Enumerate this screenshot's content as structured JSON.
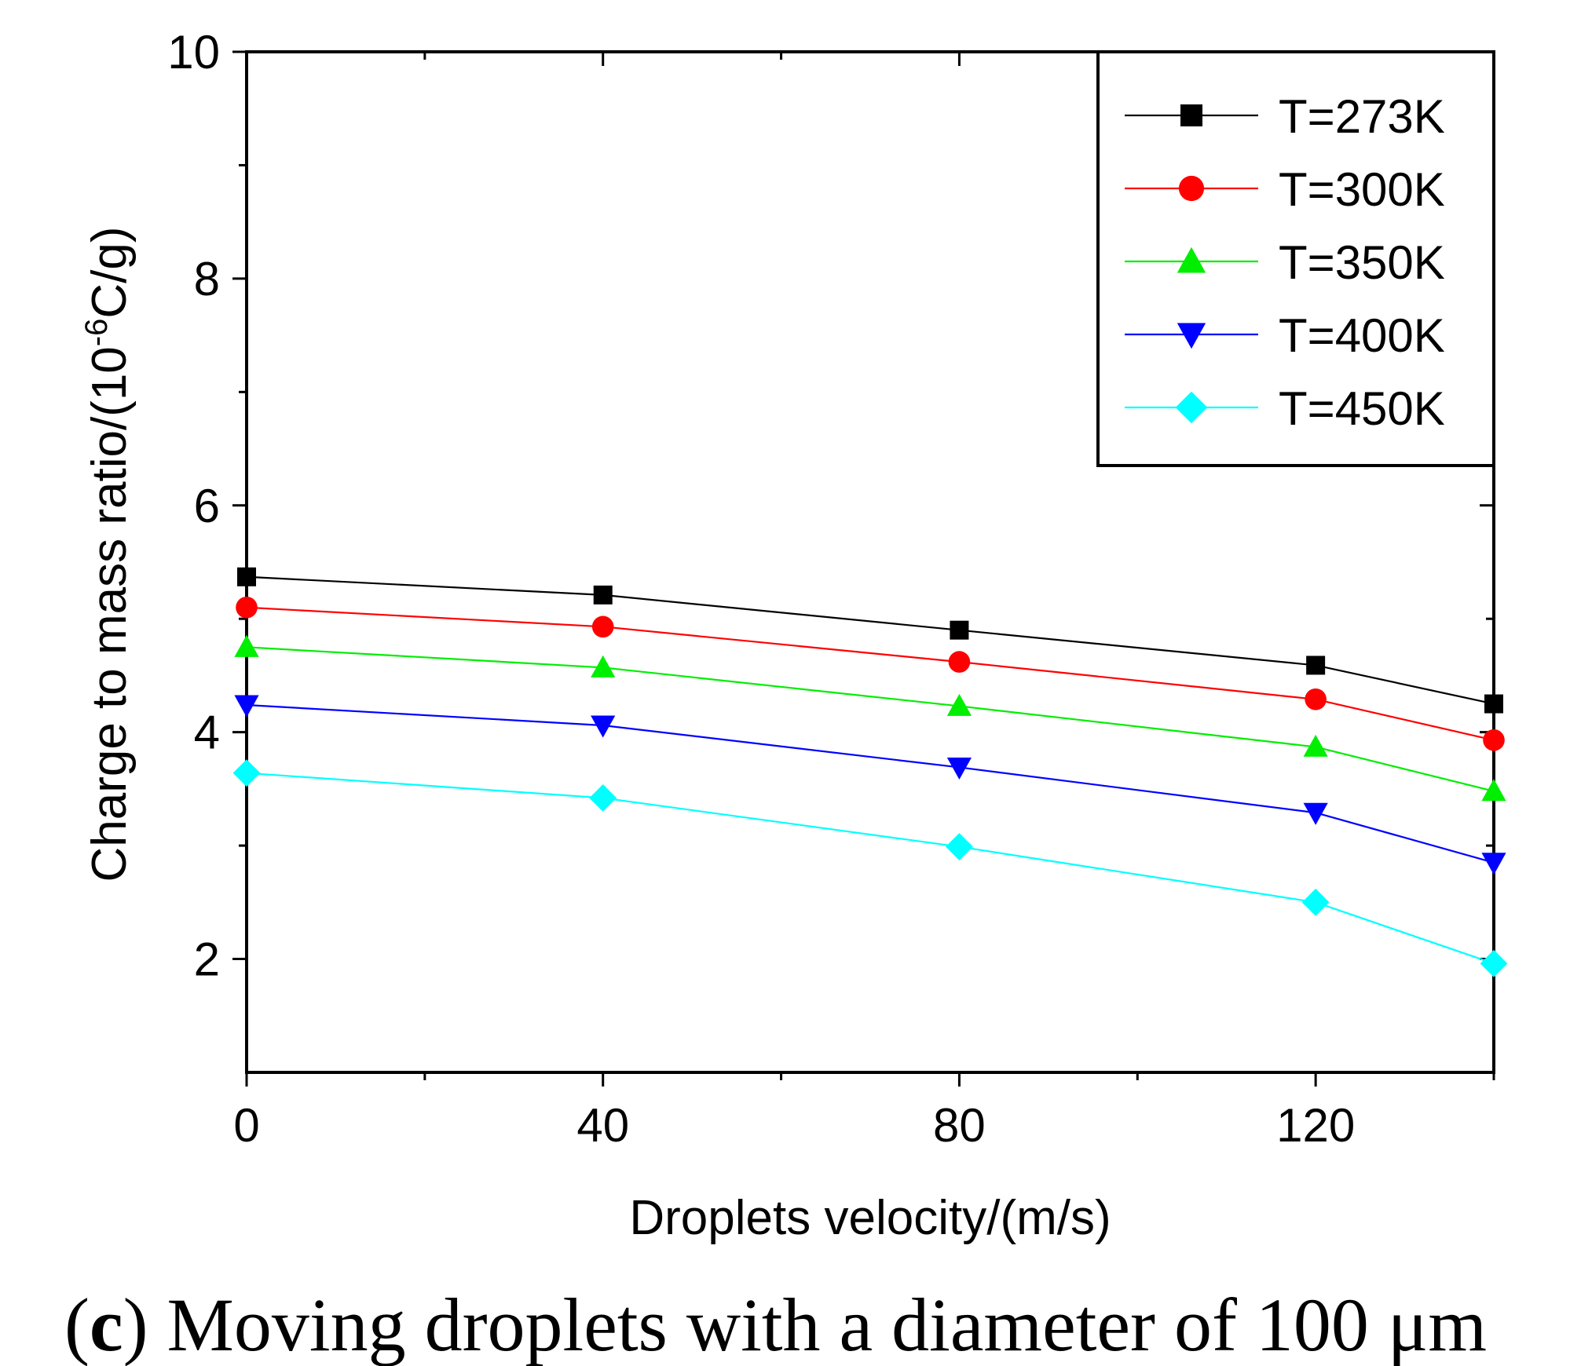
{
  "chart_data": {
    "type": "line",
    "title": "",
    "caption_label": "c",
    "caption_open": "(",
    "caption_text": ") Moving droplets with a diameter of 100 μm",
    "xlabel": "Droplets velocity/(m/s)",
    "ylabel_prefix": "Charge to mass ratio/(10",
    "ylabel_exp": "-6",
    "ylabel_suffix": "C/g)",
    "xlim": [
      0,
      140
    ],
    "ylim": [
      1,
      10
    ],
    "xticks": [
      "0",
      "40",
      "80",
      "120"
    ],
    "xtick_values": [
      0,
      40,
      80,
      120
    ],
    "yticks": [
      "2",
      "4",
      "6",
      "8",
      "10"
    ],
    "ytick_values": [
      2,
      4,
      6,
      8,
      10
    ],
    "x": [
      0,
      40,
      80,
      120,
      140
    ],
    "legend_position": "top-right",
    "grid": false,
    "series": [
      {
        "name": "T=273K",
        "color": "#000000",
        "marker": "square",
        "values": [
          5.37,
          5.21,
          4.9,
          4.59,
          4.25
        ]
      },
      {
        "name": "T=300K",
        "color": "#ff0000",
        "marker": "circle",
        "values": [
          5.1,
          4.93,
          4.62,
          4.29,
          3.93
        ]
      },
      {
        "name": "T=350K",
        "color": "#00ee00",
        "marker": "triangle-up",
        "values": [
          4.75,
          4.57,
          4.23,
          3.87,
          3.48
        ]
      },
      {
        "name": "T=400K",
        "color": "#0000ff",
        "marker": "triangle-down",
        "values": [
          4.24,
          4.06,
          3.69,
          3.29,
          2.85
        ]
      },
      {
        "name": "T=450K",
        "color": "#00ffff",
        "marker": "diamond",
        "values": [
          3.64,
          3.42,
          2.99,
          2.5,
          1.96
        ]
      }
    ]
  }
}
